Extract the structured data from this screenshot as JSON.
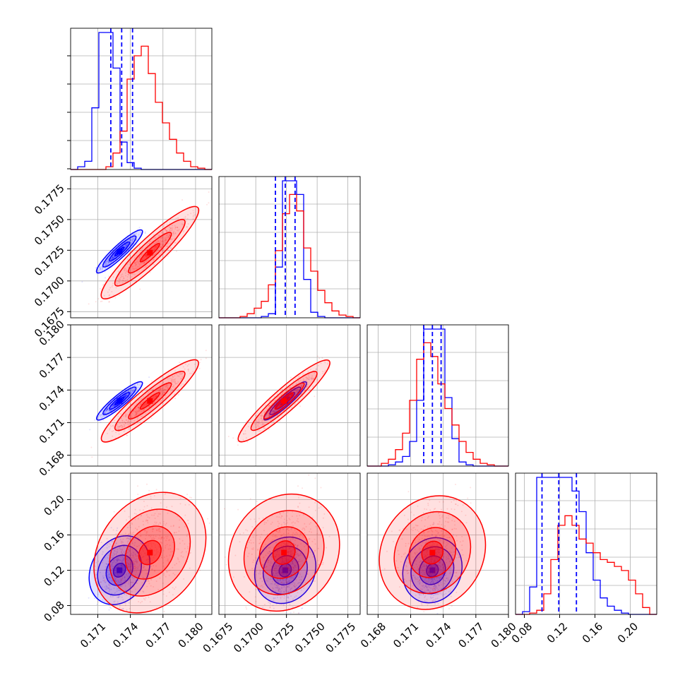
{
  "chart_data": {
    "type": "corner",
    "colors": {
      "sample_a": "#0000ff",
      "sample_b": "#ff0000"
    },
    "grid": true,
    "parameters": [
      {
        "range": [
          0.1685,
          0.1815
        ],
        "ticks": [
          0.171,
          0.174,
          0.177,
          0.18
        ],
        "tick_labels": [
          "0.171",
          "0.174",
          "0.177",
          "0.180"
        ]
      },
      {
        "range": [
          0.167,
          0.1785
        ],
        "ticks": [
          0.1675,
          0.17,
          0.1725,
          0.175,
          0.1775
        ],
        "tick_labels": [
          "0.1675",
          "0.1700",
          "0.1725",
          "0.1750",
          "0.1775"
        ]
      },
      {
        "range": [
          0.167,
          0.18
        ],
        "ticks": [
          0.168,
          0.171,
          0.174,
          0.177,
          0.18
        ],
        "tick_labels": [
          "0.168",
          "0.171",
          "0.174",
          "0.177",
          "0.180"
        ]
      },
      {
        "range": [
          0.07,
          0.23
        ],
        "ticks": [
          0.08,
          0.12,
          0.16,
          0.2
        ],
        "tick_labels": [
          "0.08",
          "0.12",
          "0.16",
          "0.20"
        ]
      }
    ],
    "quantile_lines_sample_a": [
      [
        0.1722,
        0.1732,
        0.1742
      ],
      [
        0.1716,
        0.1724,
        0.1732
      ],
      [
        0.1722,
        0.173,
        0.1738
      ],
      [
        0.1,
        0.119,
        0.139
      ]
    ],
    "samples": {
      "sample_a": {
        "mean": [
          0.173,
          0.1724,
          0.173,
          0.12
        ],
        "sd": [
          0.00085,
          0.0007,
          0.0007,
          0.018
        ]
      },
      "sample_b": {
        "mean": [
          0.1758,
          0.1723,
          0.173,
          0.14
        ],
        "sd": [
          0.0018,
          0.0015,
          0.0015,
          0.03
        ]
      }
    },
    "histograms": [
      {
        "sample_a": [
          0,
          2,
          6,
          45,
          100,
          100,
          74,
          20,
          5,
          1,
          0,
          0,
          0,
          0,
          0,
          0,
          0,
          0,
          0,
          0
        ],
        "sample_b": [
          0,
          0,
          0,
          0,
          0,
          2,
          12,
          28,
          66,
          83,
          90,
          70,
          49,
          34,
          22,
          12,
          6,
          2,
          1,
          0
        ]
      },
      {
        "sample_a": [
          0,
          0,
          0,
          0,
          0,
          0,
          1,
          3,
          37,
          100,
          100,
          90,
          28,
          4,
          1,
          0,
          0,
          0,
          0,
          0
        ],
        "sample_b": [
          0,
          0,
          0,
          1,
          3,
          7,
          12,
          24,
          49,
          76,
          90,
          78,
          51,
          34,
          20,
          11,
          5,
          2,
          1,
          0
        ],
        "sample_b_note": ""
      },
      {
        "sample_a": [
          0,
          0,
          0,
          1,
          3,
          7,
          18,
          48,
          100,
          100,
          100,
          50,
          20,
          3,
          1,
          0,
          0,
          0,
          0,
          0
        ],
        "sample_b": [
          0,
          0,
          2,
          5,
          12,
          24,
          48,
          78,
          90,
          80,
          60,
          42,
          30,
          18,
          10,
          5,
          2,
          1,
          0,
          0
        ]
      },
      {
        "sample_a": [
          0,
          2,
          20,
          100,
          100,
          100,
          100,
          100,
          90,
          75,
          45,
          25,
          12,
          6,
          3,
          1,
          0,
          0,
          0,
          0
        ],
        "sample_b": [
          0,
          0,
          1,
          3,
          15,
          40,
          65,
          72,
          65,
          55,
          52,
          45,
          40,
          38,
          35,
          32,
          25,
          15,
          5,
          0
        ]
      }
    ]
  }
}
